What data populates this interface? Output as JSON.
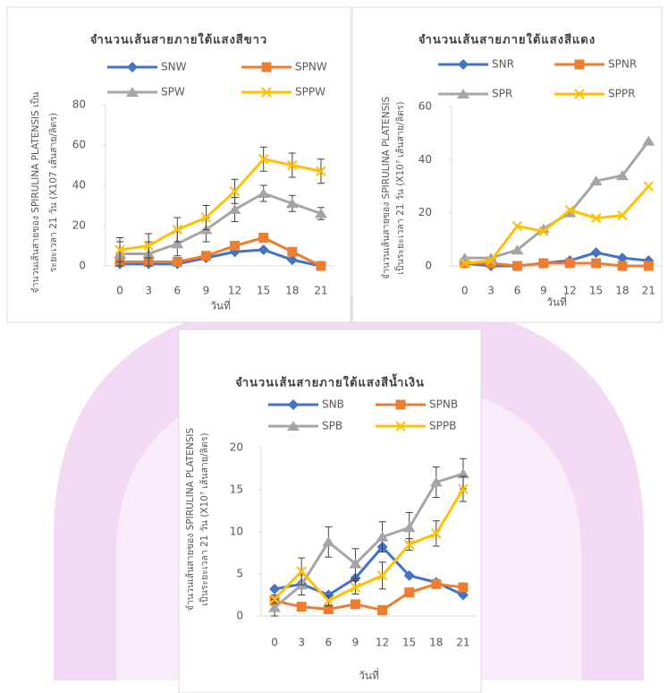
{
  "chart_data": [
    {
      "type": "line",
      "title": "จำนวนเส้นสายภายใต้แสงสีขาว",
      "ylabel": [
        "จำนวนเส้นสายของ SPIRULINA PLATENSIS เป็น",
        "ระยะเวลา 21 วัน (X107 เส้นสาย/ลิตร)"
      ],
      "xlabel": "วันที่",
      "categories": [
        "0",
        "3",
        "6",
        "9",
        "12",
        "15",
        "18",
        "21"
      ],
      "ylim": [
        0,
        80
      ],
      "yticks": [
        0,
        20,
        40,
        60,
        80
      ],
      "grid": false,
      "legend": "top",
      "series": [
        {
          "name": "SNW",
          "color": "#4472c4",
          "marker": "diamond",
          "values": [
            1,
            1,
            1,
            4,
            7,
            8,
            3,
            0
          ]
        },
        {
          "name": "SPNW",
          "color": "#ed7d31",
          "marker": "square",
          "values": [
            2,
            2,
            2,
            5,
            10,
            14,
            7,
            0
          ]
        },
        {
          "name": "SPW",
          "color": "#a5a5a5",
          "marker": "triangle",
          "values": [
            6,
            6,
            11,
            18,
            28,
            36,
            31,
            26
          ],
          "errors": [
            6,
            6,
            6,
            6,
            6,
            4,
            4,
            3
          ]
        },
        {
          "name": "SPPW",
          "color": "#ffc000",
          "marker": "x",
          "values": [
            8,
            10,
            18,
            24,
            37,
            53,
            50,
            47
          ],
          "errors": [
            6,
            6,
            6,
            6,
            6,
            6,
            6,
            6
          ]
        }
      ]
    },
    {
      "type": "line",
      "title": "จำนวนเส้นสายภายใต้แสงสีแดง",
      "ylabel": [
        "จำนวนเส้นสายของ SPIRULINA PLATENSIS",
        "เป็นระยะเวลา 21 วัน (X10⁷ เส้นสาย/ลิตร)"
      ],
      "xlabel": "วันที่",
      "categories": [
        "0",
        "3",
        "6",
        "9",
        "12",
        "15",
        "18",
        "21"
      ],
      "ylim": [
        0,
        60
      ],
      "yticks": [
        0,
        20,
        40,
        60
      ],
      "grid": false,
      "legend": "top",
      "series": [
        {
          "name": "SNR",
          "color": "#4472c4",
          "marker": "diamond",
          "values": [
            1,
            0,
            0,
            1,
            2,
            5,
            3,
            2
          ]
        },
        {
          "name": "SPNR",
          "color": "#ed7d31",
          "marker": "square",
          "values": [
            1,
            1,
            0,
            1,
            1,
            1,
            0,
            0
          ]
        },
        {
          "name": "SPR",
          "color": "#a5a5a5",
          "marker": "triangle",
          "values": [
            3,
            3,
            6,
            14,
            20,
            32,
            34,
            47
          ]
        },
        {
          "name": "SPPR",
          "color": "#ffc000",
          "marker": "x",
          "values": [
            1,
            2,
            15,
            13,
            21,
            18,
            19,
            30
          ]
        }
      ]
    },
    {
      "type": "line",
      "title": "จำนวนเส้นสายภายใต้แสงสีน้ำเงิน",
      "ylabel": [
        "จำนวนเส้นสายของ SPIRULINA PLATENSIS",
        "เป็นระยะเวลา 21 วัน (X10⁷ เส้นสาย/ลิตร)"
      ],
      "xlabel": "วันที่",
      "categories": [
        "0",
        "3",
        "6",
        "9",
        "12",
        "15",
        "18",
        "21"
      ],
      "ylim": [
        0,
        20
      ],
      "yticks": [
        0,
        5,
        10,
        15,
        20
      ],
      "grid": false,
      "legend": "top",
      "series": [
        {
          "name": "SNB",
          "color": "#4472c4",
          "marker": "diamond",
          "values": [
            3.2,
            3.8,
            2.5,
            4.5,
            8.2,
            4.8,
            4.0,
            2.5
          ]
        },
        {
          "name": "SPNB",
          "color": "#ed7d31",
          "marker": "square",
          "values": [
            1.8,
            1.1,
            0.8,
            1.4,
            0.7,
            2.8,
            3.8,
            3.4
          ]
        },
        {
          "name": "SPB",
          "color": "#a5a5a5",
          "marker": "triangle",
          "values": [
            1.0,
            3.7,
            8.8,
            6.2,
            9.4,
            10.5,
            15.9,
            16.9
          ],
          "errors": [
            1,
            1.2,
            1.8,
            1.8,
            1.8,
            1.8,
            1.8,
            1.8
          ]
        },
        {
          "name": "SPPB",
          "color": "#ffc000",
          "marker": "x",
          "values": [
            2.0,
            5.3,
            1.8,
            3.4,
            4.8,
            8.5,
            9.8,
            15.1
          ],
          "errors": [
            0.5,
            1.6,
            0.6,
            0.8,
            1.6,
            0.7,
            1.5,
            1.5
          ]
        }
      ]
    }
  ]
}
